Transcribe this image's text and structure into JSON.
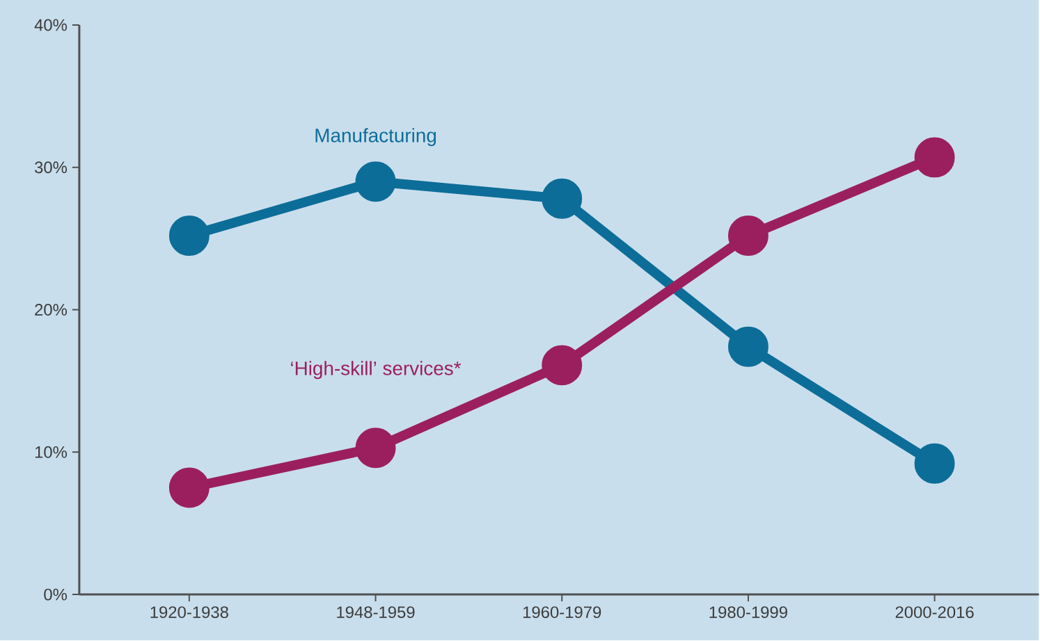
{
  "chart_data": {
    "type": "line",
    "categories": [
      "1920-1938",
      "1948-1959",
      "1960-1979",
      "1980-1999",
      "2000-2016"
    ],
    "series": [
      {
        "name": "Manufacturing",
        "color": "#0d6d99",
        "values": [
          25.2,
          29.0,
          27.8,
          17.4,
          9.2
        ]
      },
      {
        "name": "‘High-skill’ services*",
        "color": "#9b1f5f",
        "values": [
          7.5,
          10.3,
          16.1,
          25.2,
          30.7
        ]
      }
    ],
    "ylim": [
      0,
      40
    ],
    "yticks": [
      {
        "value": 0,
        "label": "0%"
      },
      {
        "value": 10,
        "label": "10%"
      },
      {
        "value": 20,
        "label": "20%"
      },
      {
        "value": 30,
        "label": "30%"
      },
      {
        "value": 40,
        "label": "40%"
      }
    ],
    "marker": "circle",
    "line_style": "solid",
    "grid": false,
    "legend": false
  }
}
